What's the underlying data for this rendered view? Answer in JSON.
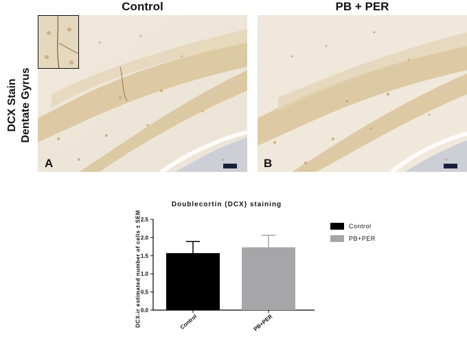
{
  "figure": {
    "side_label_line1": "DCX Stain",
    "side_label_line2": "Dentate Gyrus",
    "panels": [
      {
        "title": "Control",
        "letter": "A"
      },
      {
        "title": "PB + PER",
        "letter": "B"
      }
    ]
  },
  "chart_data": {
    "type": "bar",
    "title": "Doublecortin (DCX) staining",
    "xlabel": "",
    "ylabel": "DCX-ir estimated number of cells ± SEM",
    "categories": [
      "Control",
      "PB+PER"
    ],
    "values": [
      1.57,
      1.73
    ],
    "errors": [
      0.32,
      0.33
    ],
    "colors": [
      "#000000",
      "#a6a6a8"
    ],
    "ylim": [
      0.0,
      2.5
    ],
    "yticks": [
      "0.0",
      "0.5",
      "1.0",
      "1.5",
      "2.0",
      "2.5"
    ],
    "legend": [
      "Control",
      "PB+PER"
    ],
    "legend_position": "right",
    "grid": false
  }
}
